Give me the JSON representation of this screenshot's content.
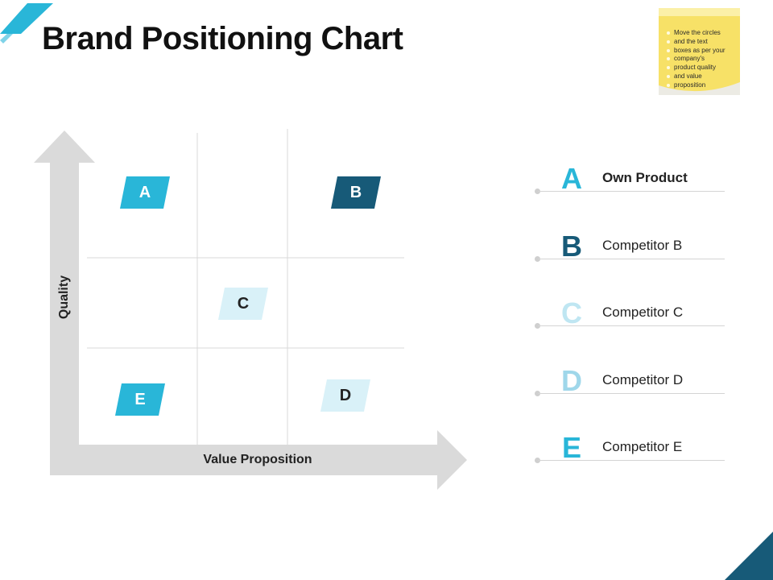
{
  "title": "Brand Positioning Chart",
  "note": {
    "lines": [
      "Move the circles",
      "and the text",
      "boxes as per your",
      "company's",
      "product  quality",
      "and value",
      "proposition"
    ]
  },
  "chart": {
    "xlabel": "Value Proposition",
    "ylabel": "Quality",
    "grid": "3x3",
    "tags": [
      {
        "letter": "A",
        "cell": "top-left",
        "fill": "#29b6d8",
        "text_color": "#ffffff"
      },
      {
        "letter": "B",
        "cell": "top-right",
        "fill": "#175a78",
        "text_color": "#ffffff"
      },
      {
        "letter": "C",
        "cell": "middle-center",
        "fill": "#d9f1f8",
        "text_color": "#222222"
      },
      {
        "letter": "D",
        "cell": "bottom-right",
        "fill": "#d9f1f8",
        "text_color": "#222222"
      },
      {
        "letter": "E",
        "cell": "bottom-left",
        "fill": "#29b6d8",
        "text_color": "#ffffff"
      }
    ]
  },
  "legend": [
    {
      "letter": "A",
      "label": "Own Product",
      "color": "#29b6d8"
    },
    {
      "letter": "B",
      "label": "Competitor B",
      "color": "#175a78"
    },
    {
      "letter": "C",
      "label": "Competitor C",
      "color": "#bfe6f2"
    },
    {
      "letter": "D",
      "label": "Competitor D",
      "color": "#9fd7ea"
    },
    {
      "letter": "E",
      "label": "Competitor E",
      "color": "#29b6d8"
    }
  ],
  "colors": {
    "accent_dark": "#175a78",
    "accent": "#29b6d8",
    "axis_gray": "#dadada",
    "note_yellow": "#f7e167"
  }
}
